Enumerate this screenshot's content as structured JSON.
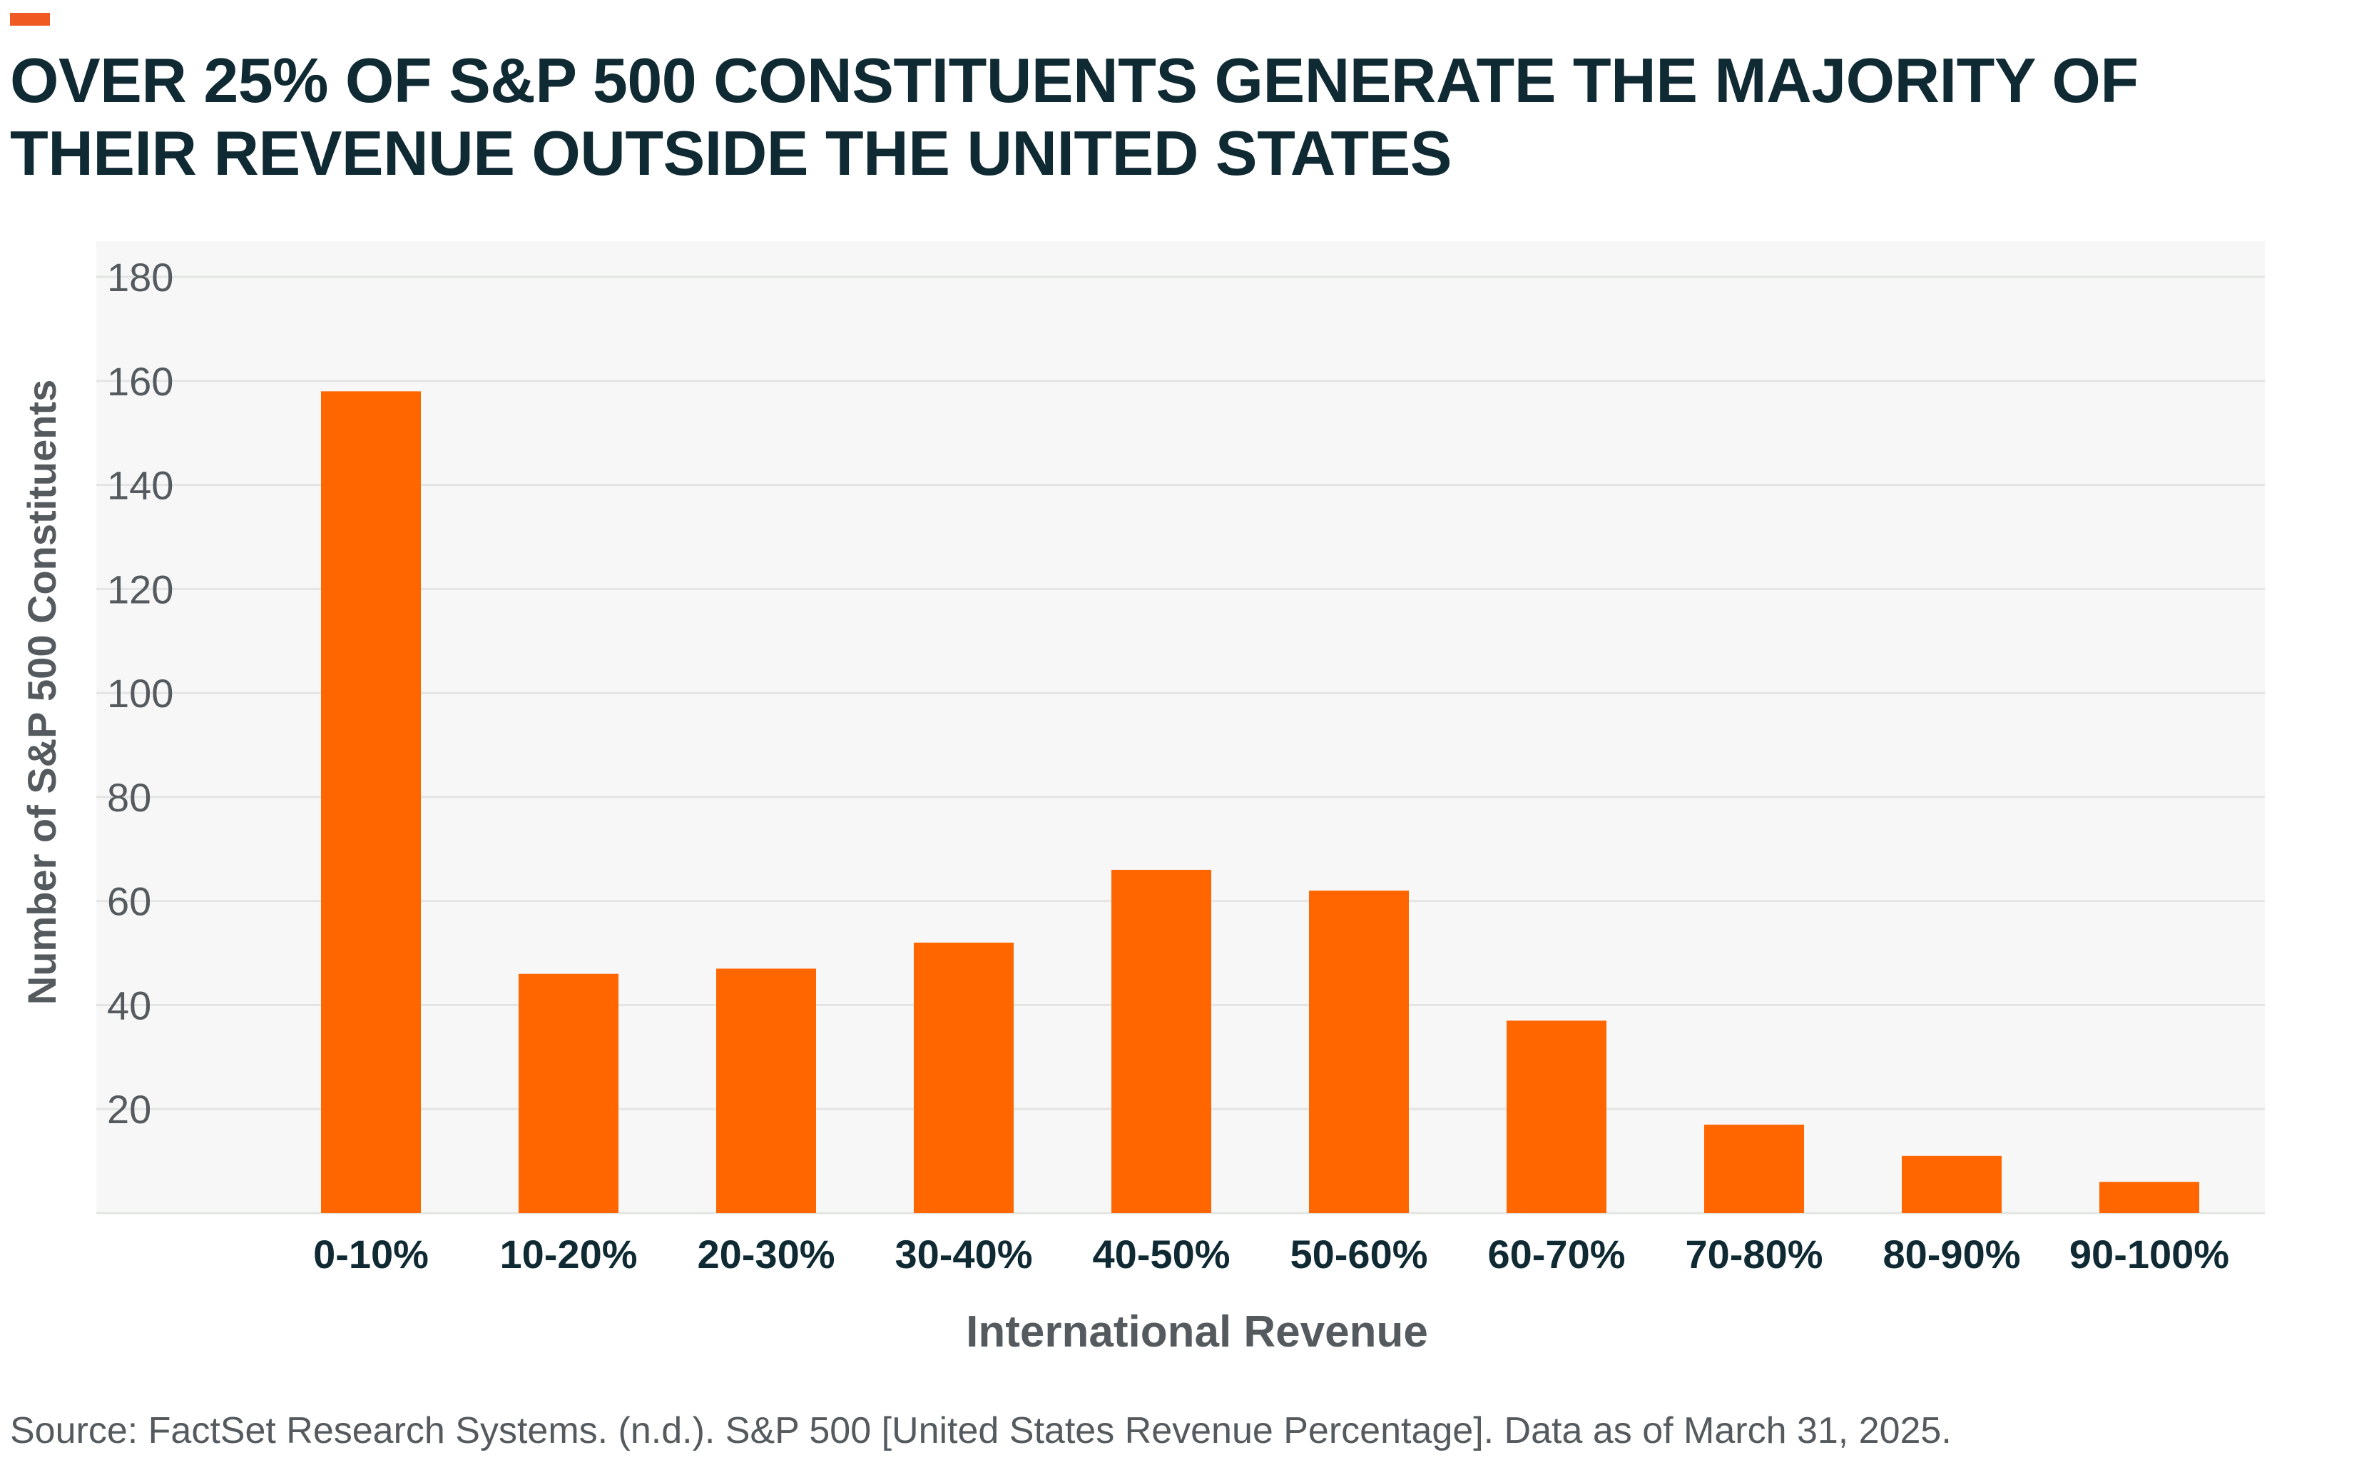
{
  "accent_color": "#f05a22",
  "bar_color": "#ff6600",
  "title": "OVER 25% OF S&P 500 CONSTITUENTS GENERATE THE MAJORITY OF THEIR REVENUE OUTSIDE THE UNITED STATES",
  "source": "Source: FactSet Research Systems. (n.d.). S&P 500 [United States Revenue Percentage]. Data as of March 31, 2025.",
  "chart_data": {
    "type": "bar",
    "title": "OVER 25% OF S&P 500 CONSTITUENTS GENERATE THE MAJORITY OF THEIR REVENUE OUTSIDE THE UNITED STATES",
    "xlabel": "International Revenue",
    "ylabel": "Number of S&P 500 Constituents",
    "categories": [
      "0-10%",
      "10-20%",
      "20-30%",
      "30-40%",
      "40-50%",
      "50-60%",
      "60-70%",
      "70-80%",
      "80-90%",
      "90-100%"
    ],
    "values": [
      158,
      46,
      47,
      52,
      66,
      62,
      37,
      17,
      11,
      6
    ],
    "ylim": [
      0,
      180
    ],
    "yticks": [
      20,
      40,
      60,
      80,
      100,
      120,
      140,
      160,
      180
    ],
    "grid": true,
    "legend": "none"
  }
}
